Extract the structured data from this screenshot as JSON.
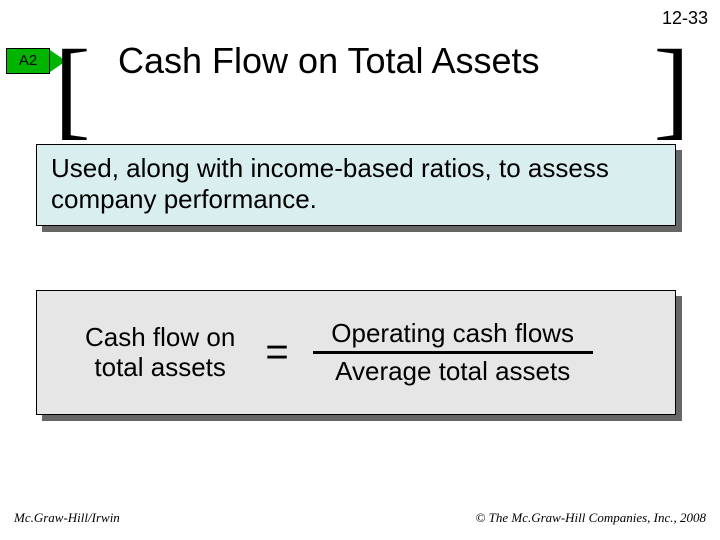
{
  "page_number": "12-33",
  "badge": "A2",
  "title": "Cash Flow on Total Assets",
  "description": "Used, along with income-based ratios, to assess company performance.",
  "formula": {
    "lhs_line1": "Cash flow on",
    "lhs_line2": "total assets",
    "equals": "=",
    "numerator": "Operating cash flows",
    "denominator": "Average total assets"
  },
  "footer": {
    "left": "Mc.Graw-Hill/Irwin",
    "right": "© The Mc.Graw-Hill Companies, Inc., 2008"
  },
  "colors": {
    "badge_bg": "#00b400",
    "desc_bg": "#d9eeee",
    "formula_bg": "#e6e6e6",
    "shadow": "#666666",
    "background": "#ffffff"
  }
}
